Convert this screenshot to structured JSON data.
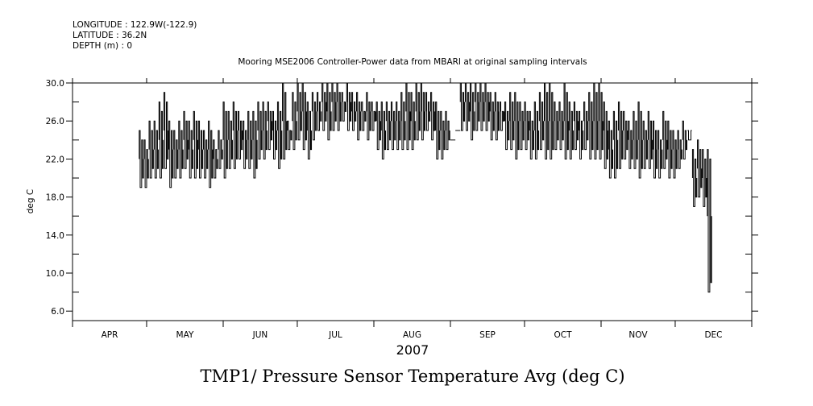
{
  "header": {
    "longitude": "LONGITUDE : 122.9W(-122.9)",
    "latitude": "LATITUDE : 36.2N",
    "depth": "DEPTH (m) : 0"
  },
  "chart_data": {
    "type": "line",
    "title": "Mooring MSE2006 Controller-Power data from MBARI at original sampling intervals",
    "bottom_title": "TMP1/ Pressure Sensor Temperature Avg (deg C)",
    "xlabel": "2007",
    "ylabel": "deg C",
    "ylim": [
      5,
      30
    ],
    "yticks": [
      "6.0",
      "10.0",
      "14.0",
      "18.0",
      "22.0",
      "26.0",
      "30.0"
    ],
    "ytick_values": [
      6,
      10,
      14,
      18,
      22,
      26,
      30
    ],
    "xticks": [
      "APR",
      "MAY",
      "JUN",
      "JUL",
      "AUG",
      "SEP",
      "OCT",
      "NOV",
      "DEC"
    ],
    "x_range": [
      "2007-04-01",
      "2008-01-01"
    ],
    "grid": false,
    "series": [
      {
        "name": "TMP1",
        "start_date": "2007-04-28",
        "bin_days": 2,
        "min": [
          19,
          19,
          20,
          20,
          20,
          21,
          19,
          20,
          20,
          21,
          20,
          20,
          20,
          20,
          19,
          20,
          21,
          20,
          21,
          21,
          22,
          21,
          21,
          20,
          22,
          22,
          23,
          22,
          21,
          22,
          23,
          23,
          24,
          23,
          22,
          24,
          25,
          25,
          24,
          25,
          25,
          26,
          25,
          25,
          24,
          25,
          24,
          25,
          23,
          22,
          23,
          23,
          23,
          23,
          23,
          23,
          24,
          24,
          25,
          24,
          22,
          22,
          23,
          24,
          25,
          25,
          25,
          24,
          25,
          25,
          25,
          24,
          24,
          25,
          23,
          23,
          22,
          23,
          23,
          22,
          22,
          23,
          22,
          22,
          23,
          23,
          22,
          22,
          23,
          22,
          23,
          22,
          22,
          22,
          21,
          20,
          20,
          21,
          22,
          21,
          21,
          20,
          21,
          21,
          20,
          20,
          21,
          20,
          20,
          21,
          22,
          24,
          17,
          18,
          17,
          8
        ],
        "max": [
          25,
          24,
          26,
          26,
          28,
          29,
          26,
          25,
          26,
          27,
          26,
          27,
          26,
          25,
          26,
          24,
          25,
          28,
          27,
          28,
          27,
          26,
          27,
          27,
          28,
          28,
          28,
          27,
          28,
          30,
          26,
          29,
          30,
          30,
          28,
          29,
          29,
          30,
          30,
          30,
          30,
          29,
          30,
          29,
          29,
          28,
          29,
          28,
          28,
          28,
          28,
          28,
          28,
          29,
          30,
          29,
          30,
          30,
          29,
          29,
          28,
          27,
          27,
          24,
          25,
          30,
          30,
          30,
          30,
          30,
          30,
          29,
          29,
          28,
          28,
          29,
          29,
          28,
          28,
          27,
          28,
          29,
          30,
          30,
          28,
          28,
          30,
          28,
          28,
          27,
          28,
          29,
          30,
          30,
          28,
          26,
          27,
          28,
          27,
          26,
          27,
          28,
          26,
          27,
          26,
          25,
          27,
          26,
          25,
          25,
          26,
          25,
          23,
          24,
          23,
          23
        ]
      }
    ]
  }
}
